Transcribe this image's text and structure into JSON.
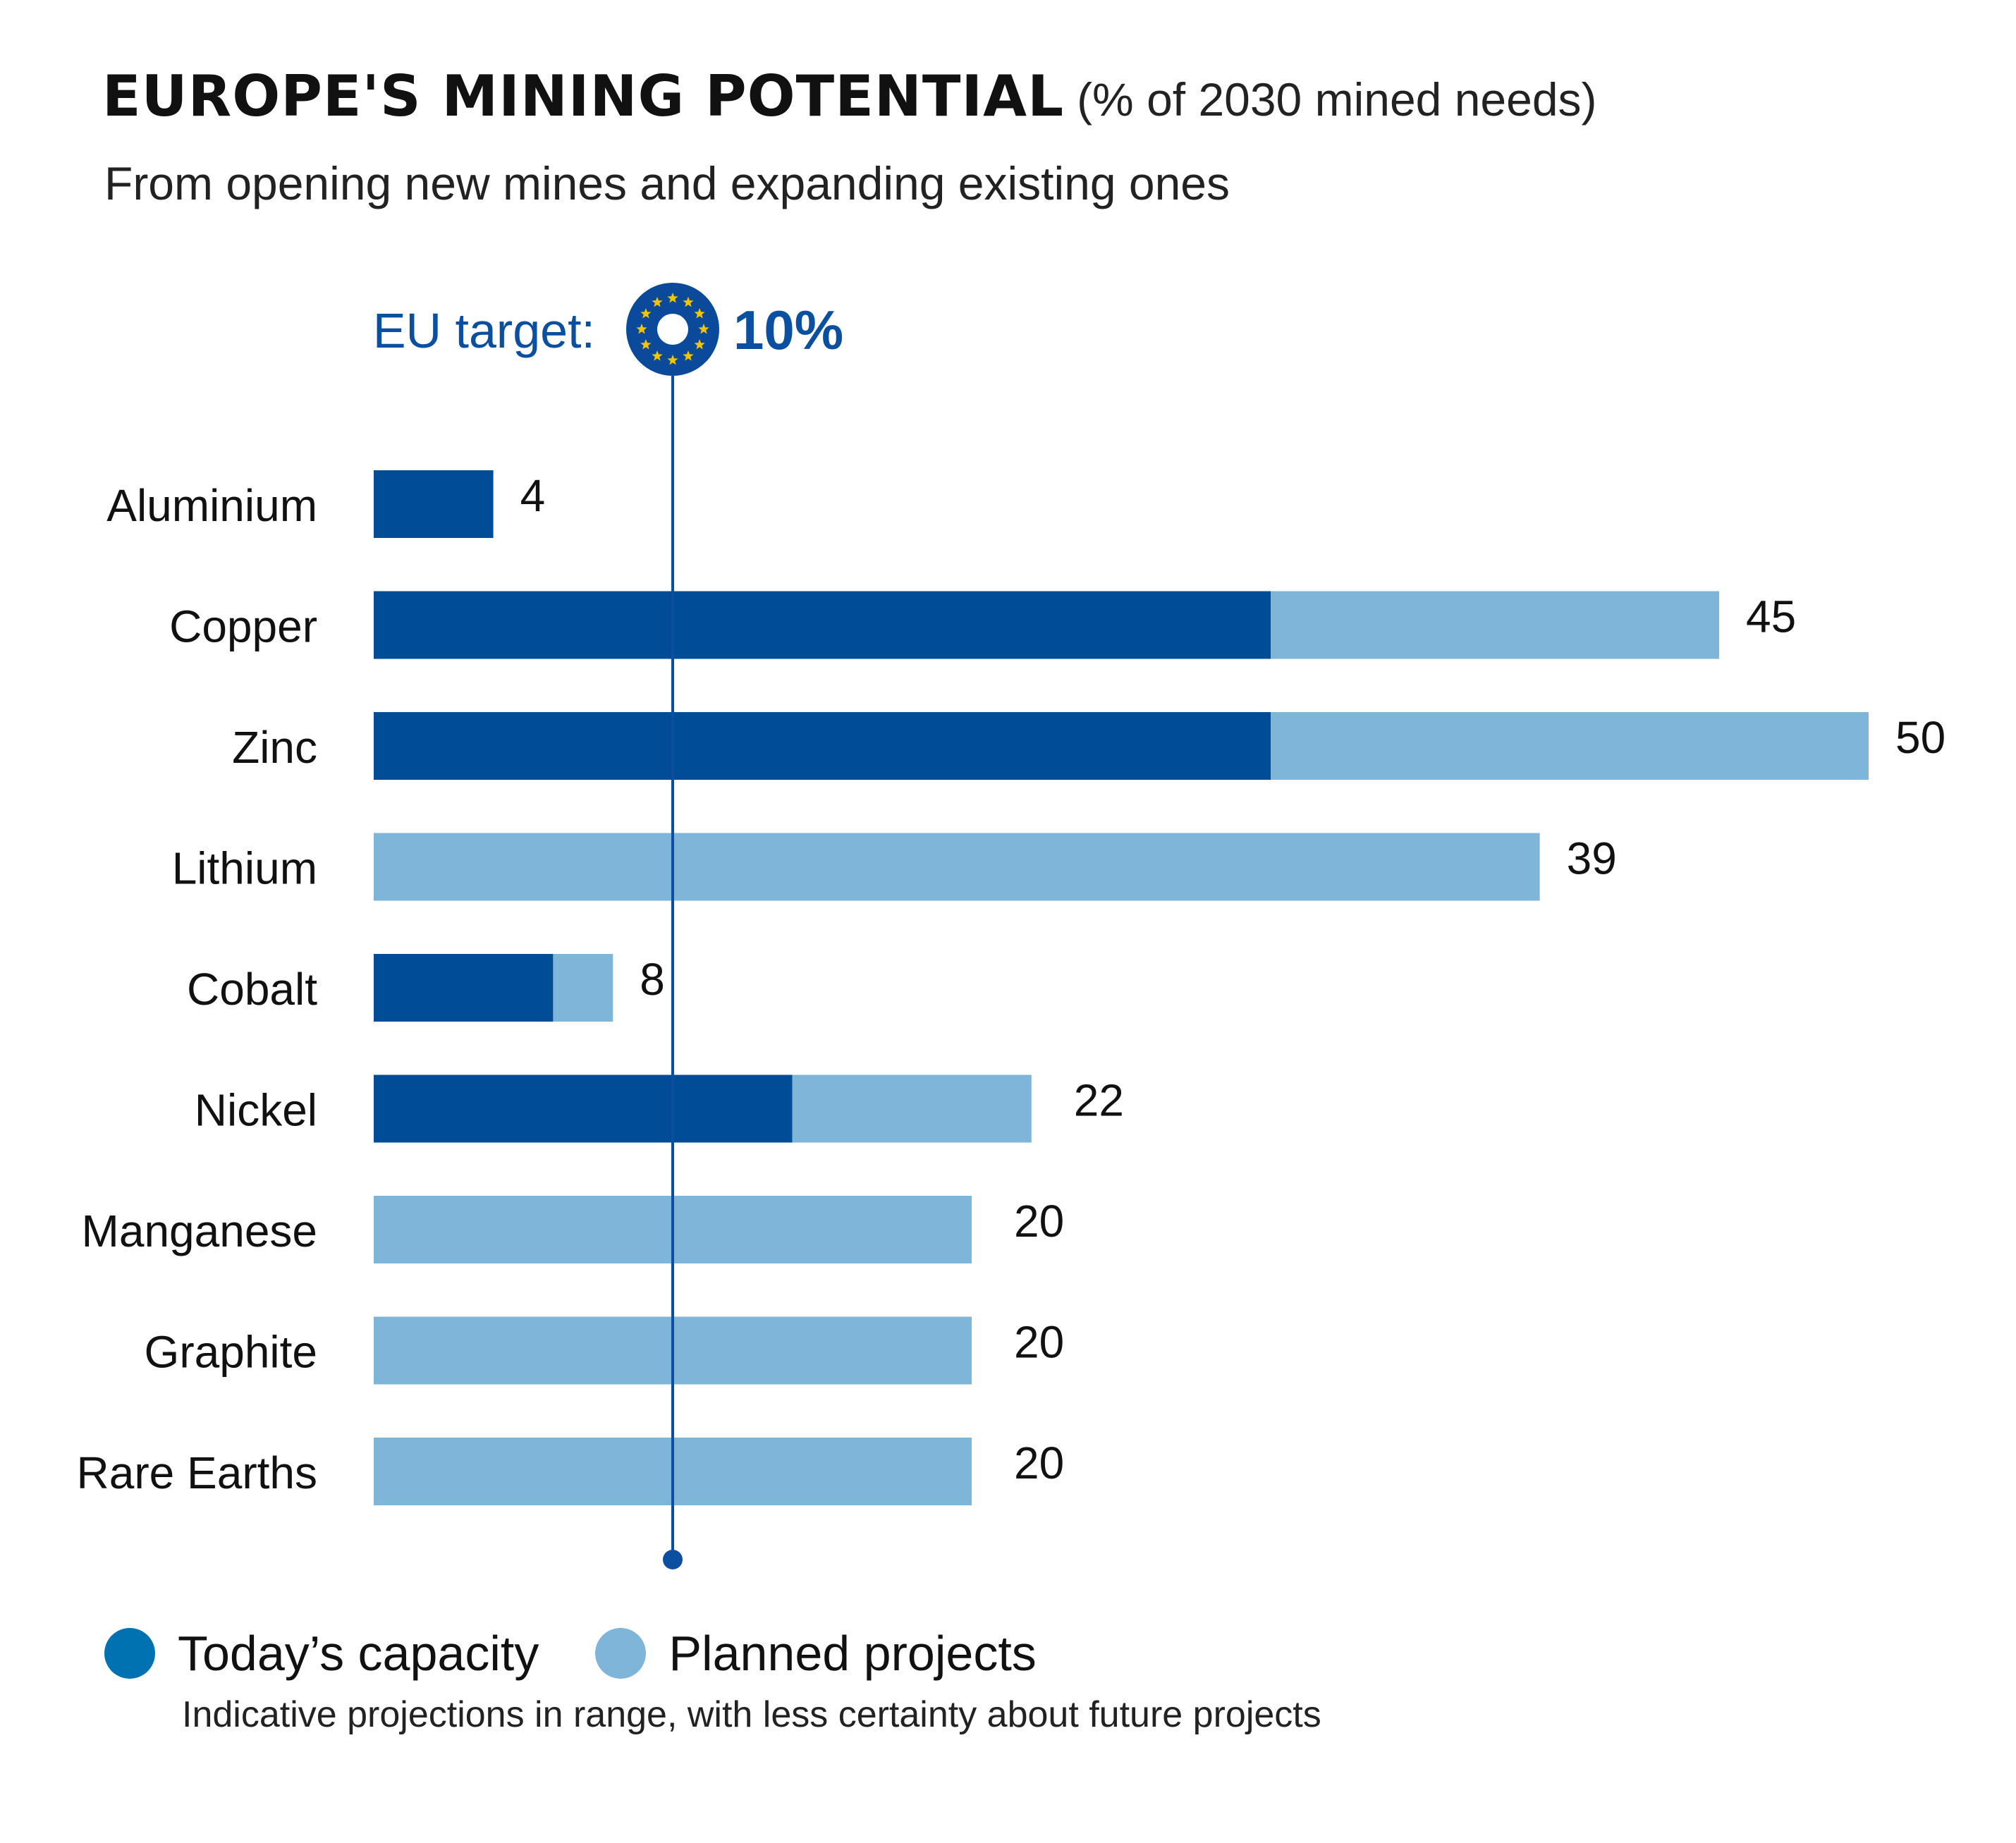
{
  "title": "EUROPE'S MINING POTENTIAL",
  "title_unit": "(% of 2030 mined needs)",
  "subtitle": "From opening new mines and expanding existing ones",
  "target": {
    "label": "EU target:",
    "value": 10,
    "value_text": "10%",
    "icon": "eu-flag-circle-icon"
  },
  "colors": {
    "today": "#004c97",
    "planned": "#80b5da",
    "target_line": "#0a4fa0",
    "legend_today": "#0072b1"
  },
  "legend": {
    "today_label": "Today’s capacity",
    "planned_label": "Planned projects",
    "note": "Indicative projections in range, with less certainty about future projects"
  },
  "chart_data": {
    "type": "bar",
    "orientation": "horizontal",
    "stacked": true,
    "title": "EUROPE'S MINING POTENTIAL",
    "subtitle": "From opening new mines and expanding existing ones",
    "xlabel": "",
    "ylabel": "",
    "xlim": [
      0,
      50
    ],
    "grid": false,
    "categories": [
      "Aluminium",
      "Copper",
      "Zinc",
      "Lithium",
      "Cobalt",
      "Nickel",
      "Manganese",
      "Graphite",
      "Rare Earths"
    ],
    "series": [
      {
        "name": "Today’s capacity",
        "values": [
          4,
          30,
          30,
          0,
          6,
          14,
          0,
          0,
          0
        ]
      },
      {
        "name": "Planned projects",
        "values": [
          0,
          15,
          20,
          39,
          2,
          8,
          20,
          20,
          20
        ]
      }
    ],
    "totals": [
      4,
      45,
      50,
      39,
      8,
      22,
      20,
      20,
      20
    ],
    "total_labels": [
      "4",
      "45",
      "50",
      "39",
      "8",
      "22",
      "20",
      "20",
      "20"
    ],
    "reference_line": {
      "label": "EU target:",
      "value": 10
    }
  }
}
